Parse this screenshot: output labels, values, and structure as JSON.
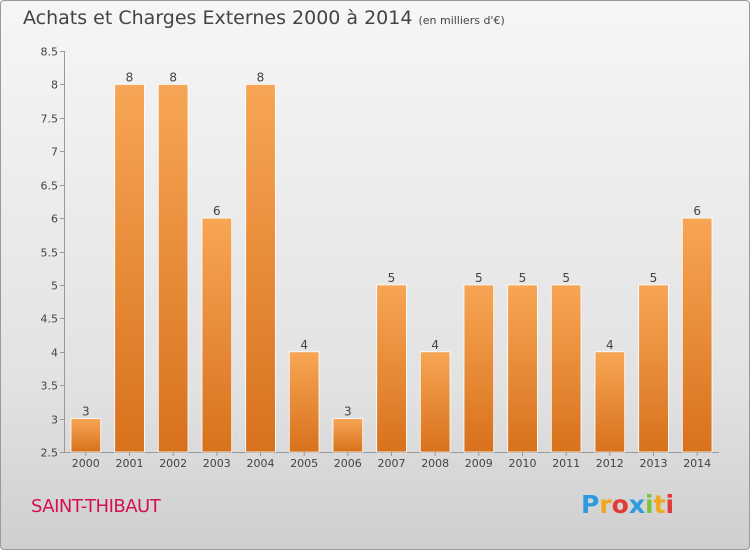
{
  "chart_data": {
    "type": "bar",
    "title": "Achats et Charges Externes 2000 à 2014",
    "subtitle": "(en milliers d'€)",
    "categories": [
      "2000",
      "2001",
      "2002",
      "2003",
      "2004",
      "2005",
      "2006",
      "2007",
      "2008",
      "2009",
      "2010",
      "2011",
      "2012",
      "2013",
      "2014"
    ],
    "values": [
      3,
      8,
      8,
      6,
      8,
      4,
      3,
      5,
      4,
      5,
      5,
      5,
      4,
      5,
      6
    ],
    "ylim": [
      2.5,
      8.5
    ],
    "yticks": [
      "2.5",
      "3",
      "3.5",
      "4",
      "4.5",
      "5",
      "5.5",
      "6",
      "6.5",
      "7",
      "7.5",
      "8",
      "8.5"
    ],
    "xlabel": "",
    "ylabel": "",
    "grid": false,
    "bar_color_top": "#f7a655",
    "bar_color_bottom": "#d8711c",
    "data_labels": true
  },
  "footer": {
    "town": "SAINT-THIBAUT",
    "logo_letters": [
      "P",
      "r",
      "o",
      "x",
      "i",
      "t",
      "i"
    ],
    "logo_colors": [
      "#2e9be0",
      "#f2a81e",
      "#e23a3a",
      "#2e9be0",
      "#7cc243",
      "#f2a81e",
      "#e23a3a"
    ]
  }
}
